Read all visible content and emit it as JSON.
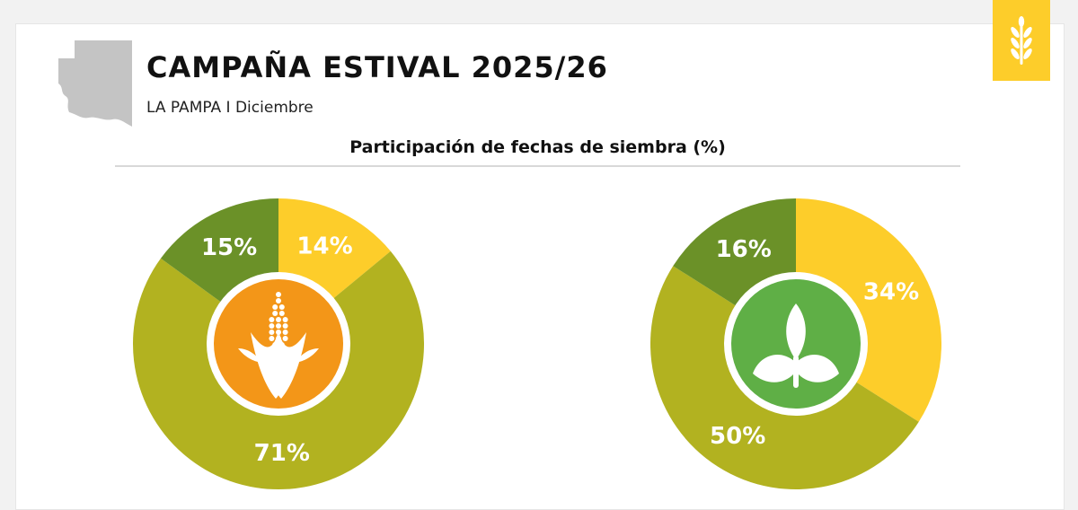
{
  "header": {
    "title": "CAMPAÑA ESTIVAL 2025/26",
    "subtitle": "LA PAMPA I Diciembre"
  },
  "icons": {
    "map": "la-pampa-province-map-icon",
    "badge": "wheat-icon",
    "left_center": "corn-icon",
    "right_center": "sprout-icon"
  },
  "colors": {
    "yellow": "#fdcd2a",
    "olive": "#b2b220",
    "dark_green": "#6b9128",
    "orange": "#f39618",
    "green": "#5faf46",
    "map_gray": "#c4c4c4"
  },
  "chart_data": [
    {
      "type": "pie",
      "title": "Participación de fechas de siembra (%)",
      "crop_icon": "corn",
      "slices": [
        {
          "value": 14,
          "label": "14%",
          "color": "#fdcd2a"
        },
        {
          "value": 71,
          "label": "71%",
          "color": "#b2b220"
        },
        {
          "value": 15,
          "label": "15%",
          "color": "#6b9128"
        }
      ]
    },
    {
      "type": "pie",
      "title": "Participación de fechas de siembra (%)",
      "crop_icon": "sprout",
      "slices": [
        {
          "value": 34,
          "label": "34%",
          "color": "#fdcd2a"
        },
        {
          "value": 50,
          "label": "50%",
          "color": "#b2b220"
        },
        {
          "value": 16,
          "label": "16%",
          "color": "#6b9128"
        }
      ]
    }
  ]
}
